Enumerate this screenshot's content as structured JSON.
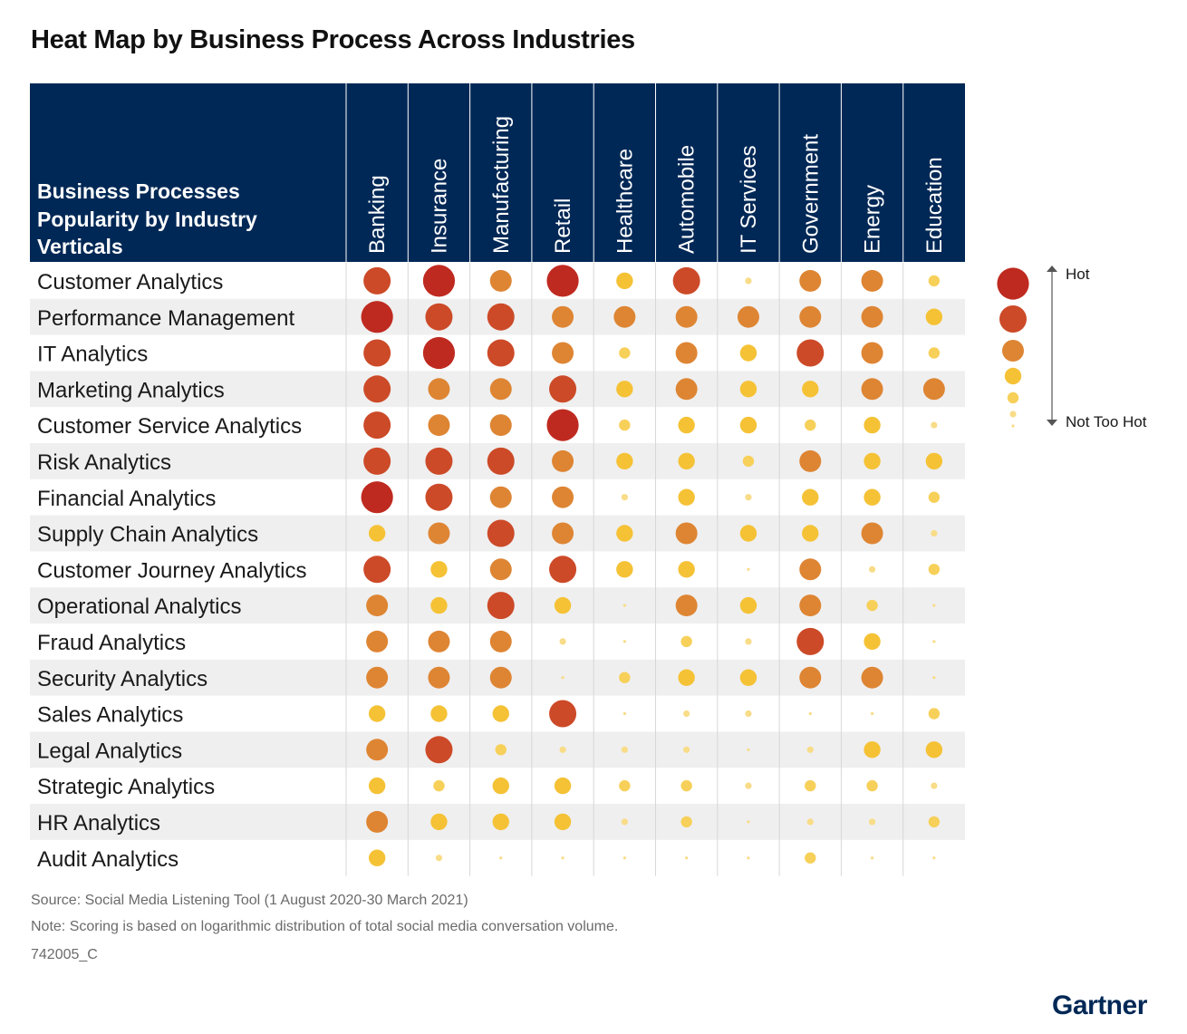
{
  "title": "Heat Map by Business Process Across Industries",
  "footer": {
    "source": "Source: Social Media Listening Tool (1 August 2020-30 March 2021)",
    "note": "Note: Scoring is based on logarithmic distribution of total social media conversation volume.",
    "code": "742005_C",
    "logo": "Gartner"
  },
  "colors": {
    "header_bg": "#002856",
    "level_1": "#f8dc87",
    "level_2": "#f7d05a",
    "level_3": "#f5c236",
    "level_4": "#de8533",
    "level_5": "#cc4a28",
    "level_6": "#bf2a20"
  },
  "chart_data": {
    "type": "heatmap",
    "title": "Heat Map by Business Process Across Industries",
    "corner_label": [
      "Business Processes",
      "Popularity by Industry",
      "Verticals"
    ],
    "columns": [
      "Banking",
      "Insurance",
      "Manufacturing",
      "Retail",
      "Healthcare",
      "Automobile",
      "IT Services",
      "Government",
      "Energy",
      "Education"
    ],
    "rows": [
      "Customer Analytics",
      "Performance Management",
      "IT Analytics",
      "Marketing Analytics",
      "Customer Service Analytics",
      "Risk Analytics",
      "Financial Analytics",
      "Supply Chain Analytics",
      "Customer Journey Analytics",
      "Operational Analytics",
      "Fraud Analytics",
      "Security Analytics",
      "Sales Analytics",
      "Legal Analytics",
      "Strategic Analytics",
      "HR Analytics",
      "Audit Analytics"
    ],
    "scale": "0 = smallest dot (Not Too Hot) to 6 = largest dot (Hot)",
    "legend": {
      "high_label": "Hot",
      "low_label": "Not Too Hot",
      "levels": [
        6,
        5,
        4,
        3,
        2,
        1
      ]
    },
    "values": [
      [
        5,
        6,
        4,
        6,
        3,
        5,
        1,
        4,
        4,
        2
      ],
      [
        6,
        5,
        5,
        4,
        4,
        4,
        4,
        4,
        4,
        3
      ],
      [
        5,
        6,
        5,
        4,
        2,
        4,
        3,
        5,
        4,
        2
      ],
      [
        5,
        4,
        4,
        5,
        3,
        4,
        3,
        3,
        4,
        4
      ],
      [
        5,
        4,
        4,
        6,
        2,
        3,
        3,
        2,
        3,
        1
      ],
      [
        5,
        5,
        5,
        4,
        3,
        3,
        2,
        4,
        3,
        3
      ],
      [
        6,
        5,
        4,
        4,
        1,
        3,
        1,
        3,
        3,
        2
      ],
      [
        3,
        4,
        5,
        4,
        3,
        4,
        3,
        3,
        4,
        1
      ],
      [
        5,
        3,
        4,
        5,
        3,
        3,
        0,
        4,
        1,
        2
      ],
      [
        4,
        3,
        5,
        3,
        0,
        4,
        3,
        4,
        2,
        0
      ],
      [
        4,
        4,
        4,
        1,
        0,
        2,
        1,
        5,
        3,
        0
      ],
      [
        4,
        4,
        4,
        0,
        2,
        3,
        3,
        4,
        4,
        0
      ],
      [
        3,
        3,
        3,
        5,
        0,
        1,
        1,
        0,
        0,
        2
      ],
      [
        4,
        5,
        2,
        1,
        1,
        1,
        0,
        1,
        3,
        3
      ],
      [
        3,
        2,
        3,
        3,
        2,
        2,
        1,
        2,
        2,
        1
      ],
      [
        4,
        3,
        3,
        3,
        1,
        2,
        0,
        1,
        1,
        2
      ],
      [
        3,
        1,
        0,
        0,
        0,
        0,
        0,
        2,
        0,
        0
      ]
    ]
  }
}
